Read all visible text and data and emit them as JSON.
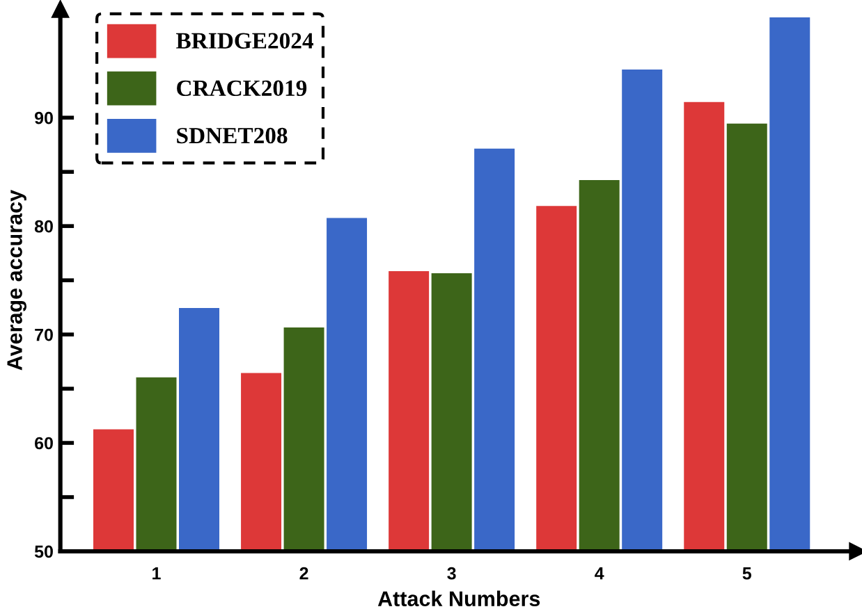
{
  "chart_data": {
    "type": "bar",
    "xlabel": "Attack Numbers",
    "ylabel": "Average accuracy",
    "categories": [
      "1",
      "2",
      "3",
      "4",
      "5"
    ],
    "series": [
      {
        "name": "BRIDGE2024",
        "color": "#dd3838",
        "values": [
          61.3,
          66.5,
          75.9,
          81.9,
          91.5
        ]
      },
      {
        "name": "CRACK2019",
        "color": "#3d6519",
        "values": [
          66.1,
          70.7,
          75.7,
          84.3,
          89.5
        ]
      },
      {
        "name": "SDNET208",
        "color": "#3a68c8",
        "values": [
          72.5,
          80.8,
          87.2,
          94.5,
          99.3
        ]
      }
    ],
    "ylim": [
      50,
      100
    ],
    "yticks": [
      50,
      {
        "value": 55,
        "label": null
      },
      60,
      {
        "value": 65,
        "label": null
      },
      70,
      {
        "value": 75,
        "label": null
      },
      80,
      {
        "value": 85,
        "label": null
      },
      90
    ],
    "grid": false,
    "legend": "top left"
  }
}
